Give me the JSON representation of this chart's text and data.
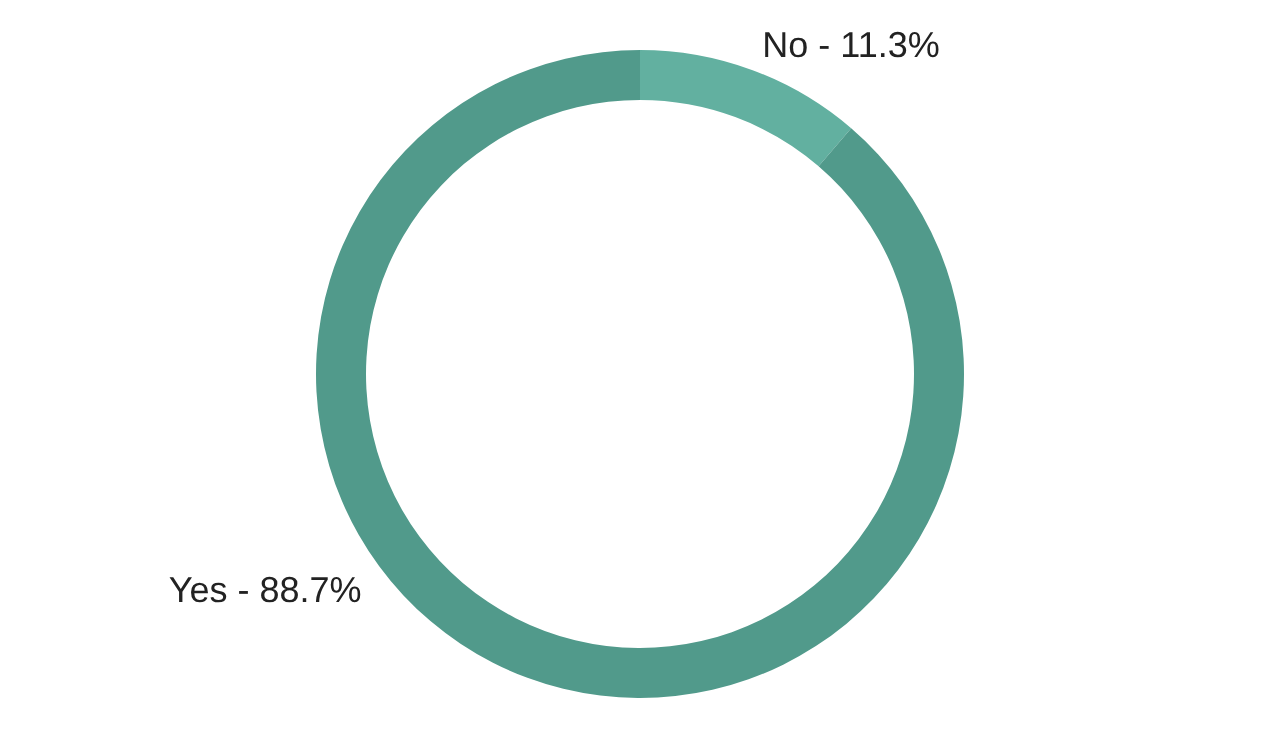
{
  "chart_data": {
    "type": "donut",
    "categories": [
      "No",
      "Yes"
    ],
    "values": [
      11.3,
      88.7
    ],
    "colors": [
      "#62b0a0",
      "#519a8b"
    ],
    "value_labels": [
      "11.3%",
      "88.7%"
    ]
  }
}
